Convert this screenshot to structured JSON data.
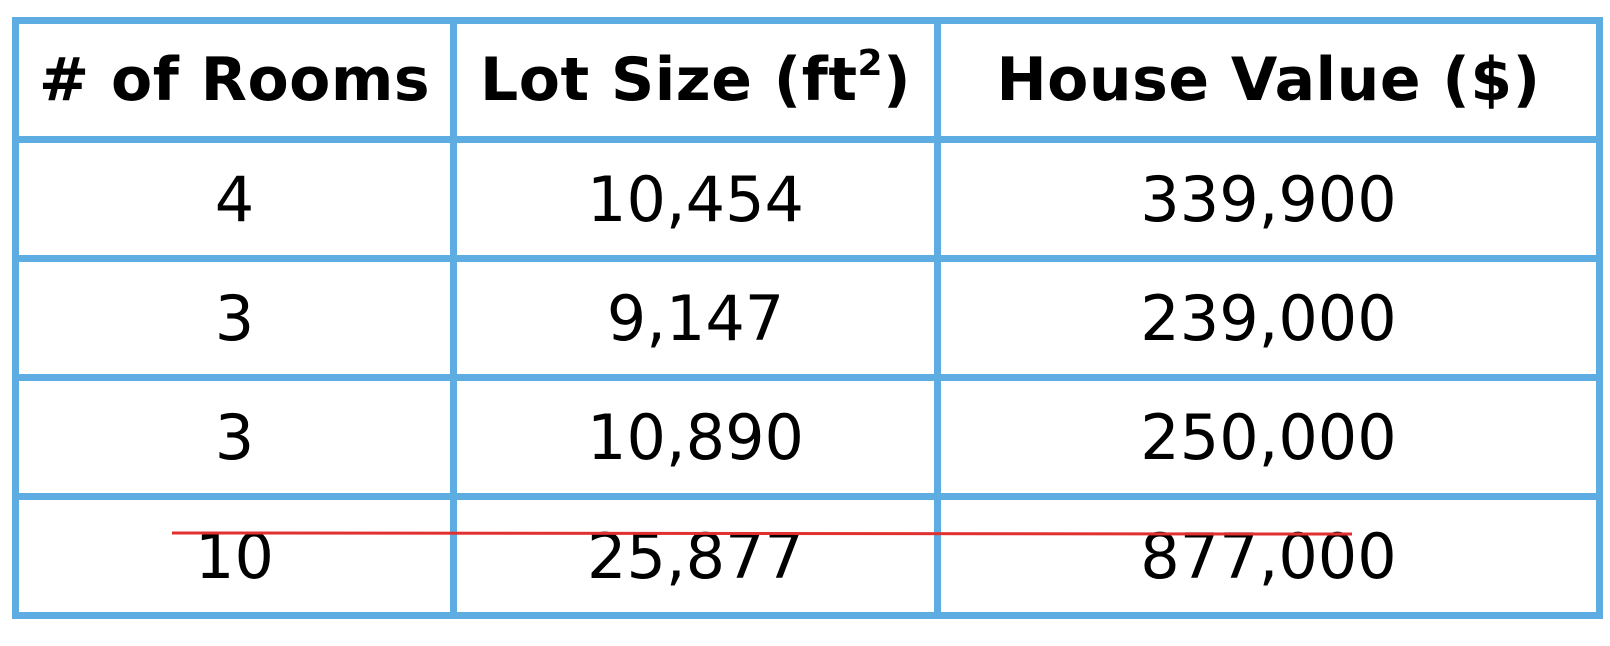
{
  "table": {
    "headers": {
      "rooms": "# of Rooms",
      "lot_size_prefix": "Lot Size (ft",
      "lot_size_sup": "2",
      "lot_size_suffix": ")",
      "house_value": "House Value ($)"
    },
    "rows": [
      {
        "rooms": "4",
        "lot_size": "10,454",
        "house_value": "339,900"
      },
      {
        "rooms": "3",
        "lot_size": "9,147",
        "house_value": "239,000"
      },
      {
        "rooms": "3",
        "lot_size": "10,890",
        "house_value": "250,000"
      },
      {
        "rooms": "10",
        "lot_size": "25,877",
        "house_value": "877,000",
        "struck_out": true
      }
    ]
  },
  "colors": {
    "border": "#5dade2",
    "strike": "#e03030"
  }
}
